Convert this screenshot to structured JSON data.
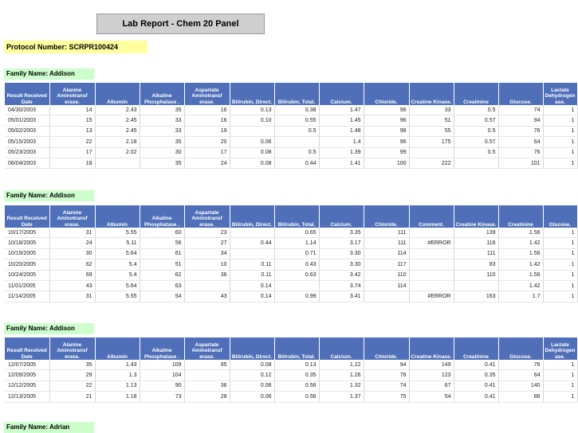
{
  "report": {
    "title": "Lab Report - Chem 20 Panel",
    "protocol": "Protocol Number:  SCRPR100424"
  },
  "sections": [
    {
      "family": "Family Name: Addison",
      "columns": [
        "Result Received Date",
        "Alanine Aminotransf erase.",
        "Albumin",
        "Alkaline Phosphatase .",
        "Aspartate Aminotransf erase.",
        "Bilirubin, Direct.",
        "Bilirubin, Total.",
        "Calcium.",
        "Chloride.",
        "Creatine Kinase.",
        "Creatinine",
        "Glucose.",
        "Lactate Dehydrogen ase."
      ],
      "rows": [
        [
          "04/30/2003",
          "14",
          "2.43",
          "35",
          "16",
          "0.13",
          "0.38",
          "1.47",
          "96",
          "33",
          "0.5",
          "74",
          "1"
        ],
        [
          "05/01/2003",
          "15",
          "2.45",
          "33",
          "16",
          "0.10",
          "0.55",
          "1.45",
          "96",
          "51",
          "0.57",
          "94",
          "1"
        ],
        [
          "05/02/2003",
          "13",
          "2.45",
          "33",
          "19",
          "",
          "0.5",
          "1.48",
          "98",
          "55",
          "0.5",
          "76",
          "1"
        ],
        [
          "05/15/2003",
          "22",
          "2.18",
          "35",
          "20",
          "0.06",
          "",
          "1.4",
          "96",
          "175",
          "0.57",
          "64",
          "1"
        ],
        [
          "05/23/2003",
          "17",
          "2.02",
          "30",
          "17",
          "0.08",
          "0.5",
          "1.39",
          "99",
          "",
          "0.5",
          "76",
          "1"
        ],
        [
          "06/04/2003",
          "18",
          "",
          "35",
          "24",
          "0.08",
          "0.44",
          "1.41",
          "100",
          "222",
          "",
          "101",
          "1"
        ]
      ]
    },
    {
      "family": "Family Name: Addison",
      "columns": [
        "Result Received Date",
        "Alanine Aminotransf erase.",
        "Albumin",
        "Alkaline Phosphatase .",
        "Aspartate Aminotransf erase.",
        "Bilirubin, Direct.",
        "Bilirubin, Total.",
        "Calcium.",
        "Chloride.",
        "Comment.",
        "Creatine Kinase.",
        "Creatinine",
        "Glucose."
      ],
      "rows": [
        [
          "10/17/2005",
          "31",
          "5.55",
          "60",
          "23",
          "",
          "0.65",
          "3.35",
          "111",
          "",
          "139",
          "1.56",
          "1"
        ],
        [
          "10/18/2005",
          "24",
          "5.11",
          "56",
          "27",
          "0.44",
          "1.14",
          "3.17",
          "111",
          "#ERROR",
          "116",
          "1.42",
          "1"
        ],
        [
          "10/19/2005",
          "30",
          "5.64",
          "61",
          "34",
          "",
          "0.71",
          "3.30",
          "114",
          "",
          "111",
          "1.56",
          "1"
        ],
        [
          "10/20/2005",
          "62",
          "5.4",
          "51",
          "10",
          "0.11",
          "0.43",
          "3.30",
          "117",
          "",
          "83",
          "1.42",
          "1"
        ],
        [
          "10/24/2005",
          "69",
          "5.4",
          "62",
          "36",
          "0.11",
          "0.63",
          "3.42",
          "110",
          "",
          "110",
          "1.56",
          "1"
        ],
        [
          "11/01/2005",
          "43",
          "5.64",
          "63",
          "",
          "0.14",
          "",
          "3.74",
          "114",
          "",
          "",
          "1.42",
          "1"
        ],
        [
          "11/14/2005",
          "31",
          "5.55",
          "54",
          "43",
          "0.14",
          "0.99",
          "3.41",
          "",
          "#ERROR",
          "163",
          "1.7",
          "1"
        ]
      ]
    },
    {
      "family": "Family Name: Addison",
      "columns": [
        "Result Received Date",
        "Alanine Aminotransf erase.",
        "Albumin",
        "Alkaline Phosphatase .",
        "Aspartate Aminotransf erase.",
        "Bilirubin, Direct.",
        "Bilirubin, Total.",
        "Calcium.",
        "Chloride.",
        "Creatine Kinase.",
        "Creatinine",
        "Glucose.",
        "Lactate Dehydrogen ase."
      ],
      "rows": [
        [
          "12/07/2005",
          "35",
          "1.43",
          "109",
          "95",
          "0.08",
          "0.13",
          "1.22",
          "94",
          "149",
          "0.41",
          "76",
          "1"
        ],
        [
          "12/09/2005",
          "29",
          "1.3",
          "104",
          "",
          "0.12",
          "0.35",
          "1.26",
          "76",
          "123",
          "0.35",
          "64",
          "1"
        ],
        [
          "12/12/2005",
          "22",
          "1.13",
          "90",
          "36",
          "0.06",
          "0.56",
          "1.32",
          "74",
          "67",
          "0.41",
          "140",
          "1"
        ],
        [
          "12/13/2005",
          "21",
          "1.18",
          "73",
          "28",
          "0.06",
          "0.56",
          "1.37",
          "75",
          "54",
          "0.41",
          "86",
          "1"
        ]
      ]
    },
    {
      "family": "Family Name: Adrian"
    }
  ]
}
